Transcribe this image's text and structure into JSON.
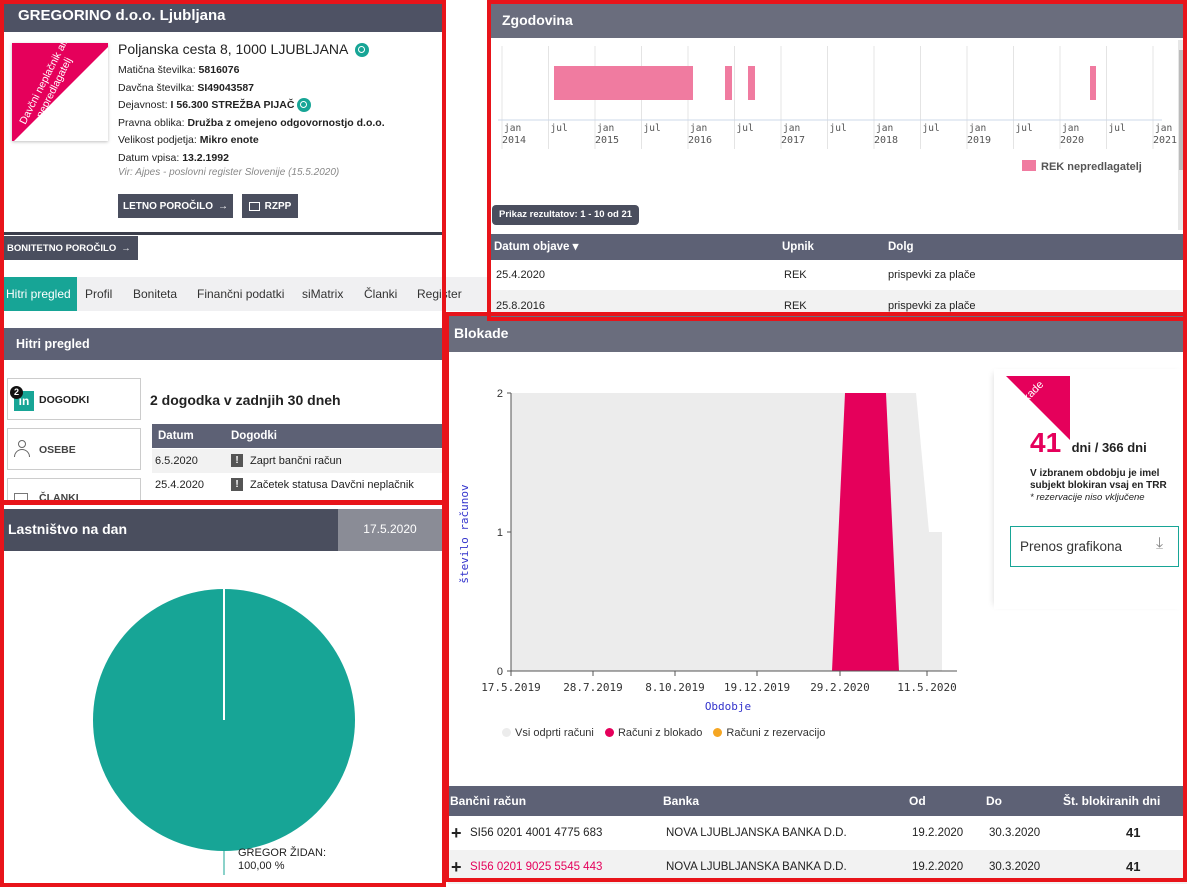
{
  "company": {
    "name": "GREGORINO d.o.o. Ljubljana",
    "badge": "Davčni neplačnik ali nepredlagatelj",
    "address": "Poljanska cesta 8, 1000 LJUBLJANA",
    "fields": [
      {
        "label": "Matična številka:",
        "value": "5816076"
      },
      {
        "label": "Davčna številka:",
        "value": "SI49043587"
      },
      {
        "label": "Dejavnost:",
        "value": "I 56.300 STREŽBA PIJAČ"
      },
      {
        "label": "Pravna oblika:",
        "value": "Družba z omejeno odgovornostjo d.o.o."
      },
      {
        "label": "Velikost podjetja:",
        "value": "Mikro enote"
      },
      {
        "label": "Datum vpisa:",
        "value": "13.2.1992"
      }
    ],
    "source": "Vir: Ajpes - poslovni register Slovenije (15.5.2020)",
    "btn_letno": "LETNO POROČILO",
    "btn_rzpp": "RZPP",
    "btn_bonitetno": "BONITETNO POROČILO"
  },
  "tabs": [
    "Hitri pregled",
    "Profil",
    "Boniteta",
    "Finančni podatki",
    "siMatrix",
    "Članki",
    "Register"
  ],
  "hitri": {
    "title": "Hitri pregled",
    "side": [
      {
        "label": "DOGODKI",
        "count": "2"
      },
      {
        "label": "OSEBE"
      },
      {
        "label": "ČLANKI"
      }
    ],
    "headline": "2 dogodka v zadnjih 30 dneh",
    "col_datum": "Datum",
    "col_dogodki": "Dogodki",
    "rows": [
      {
        "date": "6.5.2020",
        "text": "Zaprt bančni račun"
      },
      {
        "date": "25.4.2020",
        "text": "Začetek statusa Davčni neplačnik"
      }
    ]
  },
  "lastnistvo": {
    "title": "Lastništvo na dan",
    "date": "17.5.2020",
    "owner": "GREGOR ŽIDAN:",
    "share": "100,00 %",
    "color": "#17a596"
  },
  "zgodovina": {
    "title": "Zgodovina",
    "axis_top": [
      "jan",
      "jul",
      "jan",
      "jul",
      "jan",
      "jul",
      "jan",
      "jul",
      "jan",
      "jul",
      "jan",
      "jul",
      "jan",
      "jul",
      "jan"
    ],
    "years": [
      "2014",
      "2015",
      "2016",
      "2017",
      "2018",
      "2019",
      "2020",
      "2021"
    ],
    "legend": "REK nepredlagatelj",
    "bar_color": "#f07ba0",
    "results": "Prikaz rezultatov: 1 - 10 od 21",
    "col_datum": "Datum objave",
    "col_upnik": "Upnik",
    "col_dolg": "Dolg",
    "rows": [
      {
        "datum": "25.4.2020",
        "upnik": "REK",
        "dolg": "prispevki za plače"
      },
      {
        "datum": "25.8.2016",
        "upnik": "REK",
        "dolg": "prispevki za plače"
      }
    ]
  },
  "blokade": {
    "title": "Blokade",
    "badge": "Blokade",
    "days_num": "41",
    "days_text": "dni / 366 dni",
    "desc": "V izbranem obdobju je imel subjekt blokiran vsaj en TRR",
    "note": "* rezervacije niso vključene",
    "download": "Prenos grafikona",
    "col_racun": "Bančni račun",
    "col_banka": "Banka",
    "col_od": "Od",
    "col_do": "Do",
    "col_dni": "Št. blokiranih dni",
    "rows": [
      {
        "racun": "SI56 0201 4001 4775 683",
        "banka": "NOVA LJUBLJANSKA BANKA D.D.",
        "od": "19.2.2020",
        "do": "30.3.2020",
        "dni": "41"
      },
      {
        "racun": "SI56 0201 9025 5545 443",
        "banka": "NOVA LJUBLJANSKA BANKA D.D.",
        "od": "19.2.2020",
        "do": "30.3.2020",
        "dni": "41"
      }
    ],
    "accent": "#e5005b"
  },
  "chart_data": {
    "type": "area",
    "xlabel": "Obdobje",
    "ylabel": "število računov",
    "x_ticks": [
      "17.5.2019",
      "28.7.2019",
      "8.10.2019",
      "19.12.2019",
      "29.2.2020",
      "11.5.2020"
    ],
    "y_ticks": [
      "0",
      "1",
      "2"
    ],
    "ylim": [
      0,
      2
    ],
    "series": [
      {
        "name": "Vsi odprti računi",
        "color": "#ececec",
        "x": [
          "17.5.2019",
          "6.5.2020",
          "8.5.2020",
          "17.5.2020"
        ],
        "values": [
          2,
          2,
          1,
          1
        ]
      },
      {
        "name": "Računi z blokado",
        "color": "#e5005b",
        "x": [
          "15.2.2020",
          "19.2.2020",
          "30.3.2020",
          "3.4.2020"
        ],
        "values": [
          0,
          2,
          2,
          0
        ]
      },
      {
        "name": "Računi z rezervacijo",
        "color": "#f5a623",
        "x": [],
        "values": []
      }
    ]
  }
}
